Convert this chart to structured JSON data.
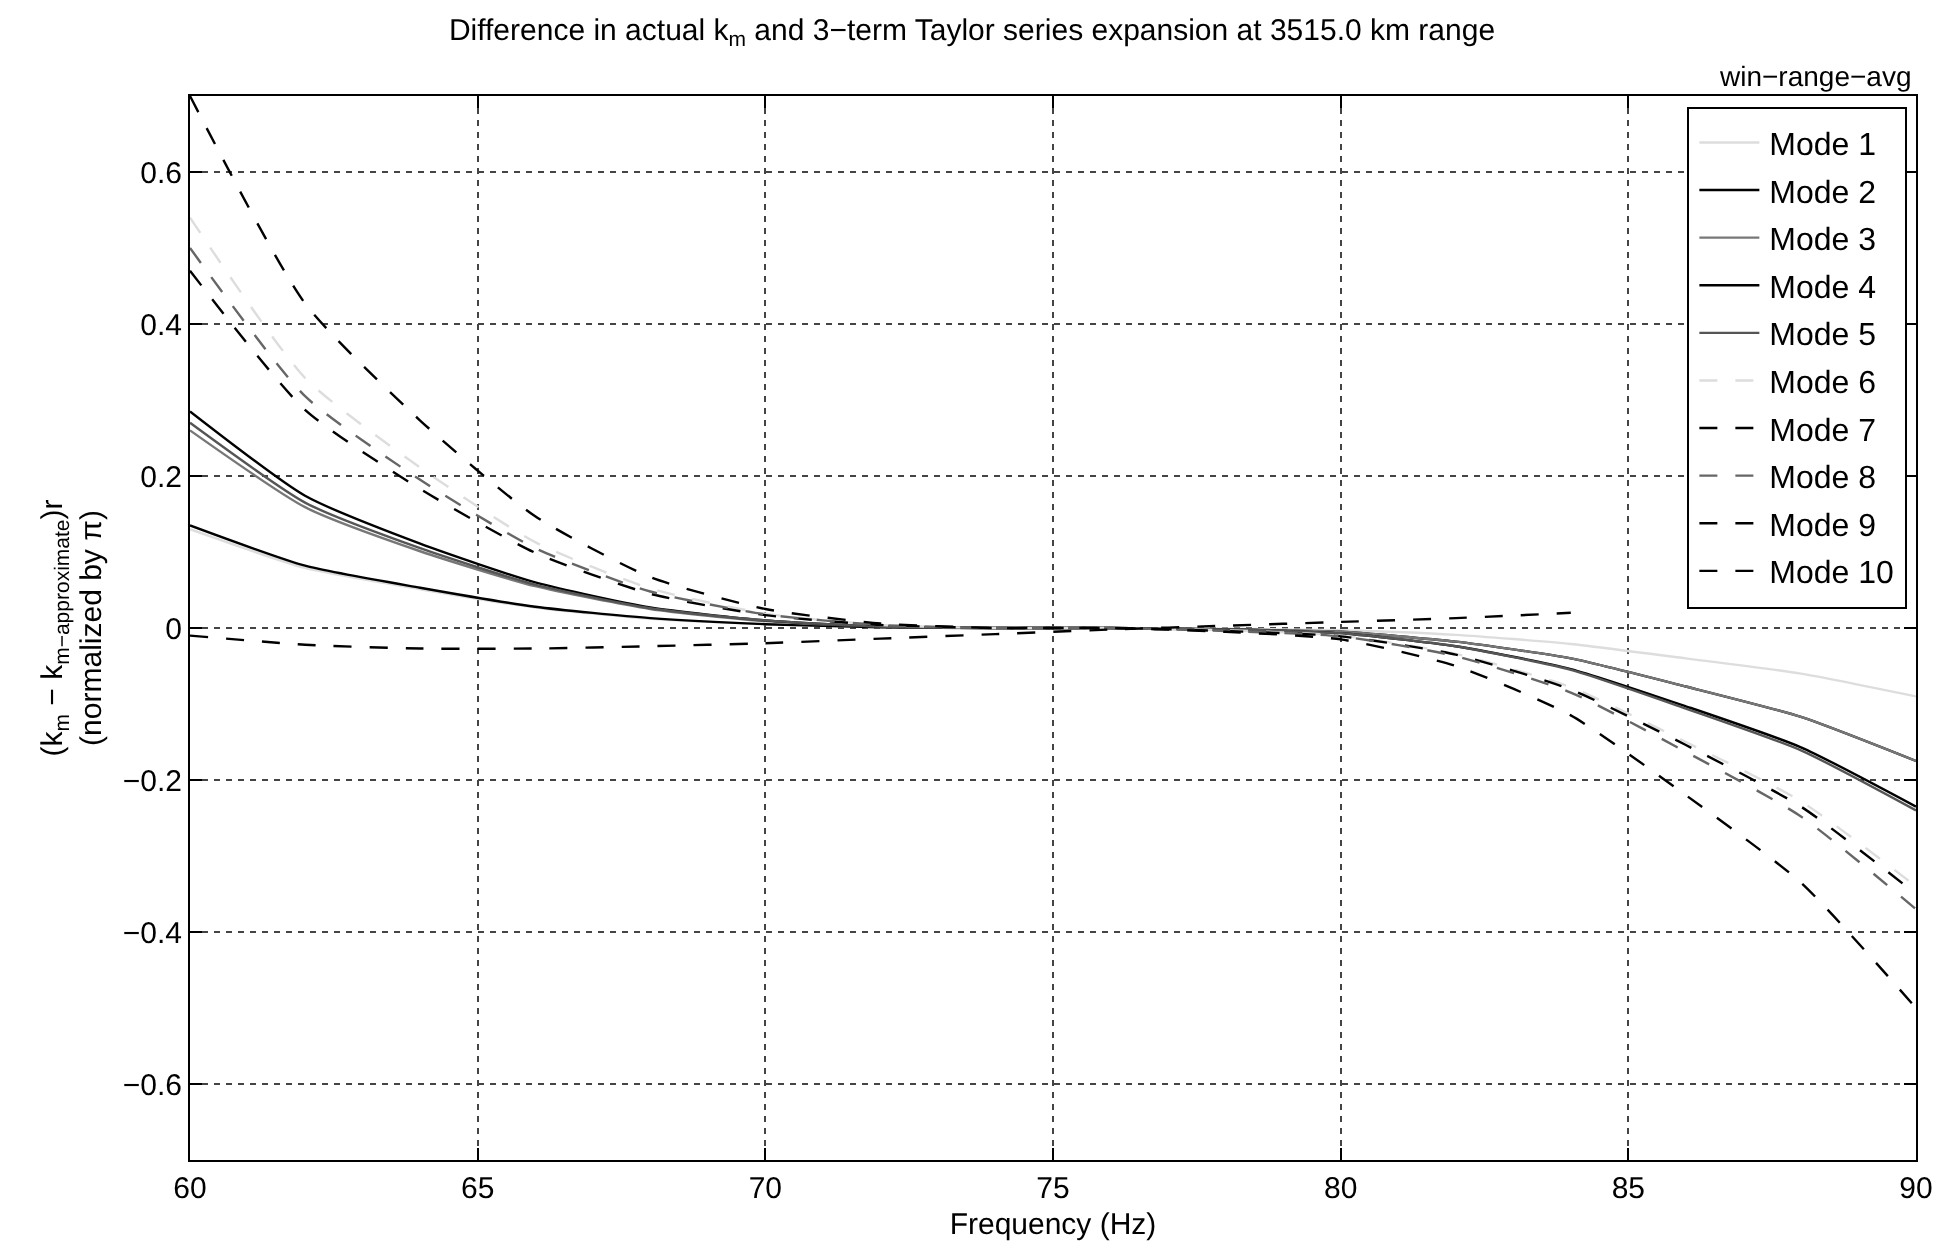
{
  "chart_data": {
    "type": "line",
    "title": "Difference in actual k$_{m}$ and 3−term Taylor series expansion at 3515.0 km range",
    "xlabel": "Frequency (Hz)",
    "ylabel": "(k$_{m}$ − k$_{m−approximate}$)r\n(normalized by π)",
    "annotations": [
      "win−range−avg"
    ],
    "x": [
      60,
      62,
      64,
      66,
      68,
      70,
      72,
      74,
      76,
      78,
      80,
      82,
      84,
      86,
      88,
      90
    ],
    "series": [
      {
        "name": "Mode 1",
        "color": "#dddddd",
        "line_style": "solid",
        "values": [
          0.13,
          0.079,
          0.051,
          0.027,
          0.012,
          0.005,
          0.001,
          0,
          0,
          -0.001,
          -0.003,
          -0.009,
          -0.021,
          -0.04,
          -0.06,
          -0.09
        ]
      },
      {
        "name": "Mode 2",
        "color": "#000000",
        "line_style": "solid",
        "values": [
          0.135,
          0.082,
          0.053,
          0.028,
          0.013,
          0.005,
          0.001,
          0,
          0,
          -0.002,
          -0.005,
          -0.018,
          -0.04,
          -0.077,
          -0.117,
          -0.175
        ]
      },
      {
        "name": "Mode 3",
        "color": "#777777",
        "line_style": "solid",
        "values": [
          0.26,
          0.159,
          0.101,
          0.055,
          0.025,
          0.009,
          0.002,
          0,
          0,
          -0.002,
          -0.005,
          -0.018,
          -0.04,
          -0.077,
          -0.117,
          -0.175
        ]
      },
      {
        "name": "Mode 4",
        "color": "#000000",
        "line_style": "solid",
        "values": [
          0.285,
          0.174,
          0.111,
          0.06,
          0.027,
          0.01,
          0.002,
          0,
          0,
          -0.002,
          -0.007,
          -0.024,
          -0.054,
          -0.103,
          -0.157,
          -0.235
        ]
      },
      {
        "name": "Mode 5",
        "color": "#555555",
        "line_style": "solid",
        "values": [
          0.27,
          0.165,
          0.105,
          0.057,
          0.026,
          0.01,
          0.002,
          0,
          0,
          -0.002,
          -0.007,
          -0.024,
          -0.055,
          -0.106,
          -0.161,
          -0.24
        ]
      },
      {
        "name": "Mode 6",
        "color": "#dddddd",
        "line_style": "dashed",
        "values": [
          0.54,
          0.329,
          0.211,
          0.113,
          0.052,
          0.019,
          0.004,
          0,
          0,
          -0.003,
          -0.01,
          -0.034,
          -0.078,
          -0.15,
          -0.228,
          -0.34
        ]
      },
      {
        "name": "Mode 7",
        "color": "#000000",
        "line_style": "dashed",
        "values": [
          0.47,
          0.287,
          0.183,
          0.099,
          0.045,
          0.017,
          0.004,
          0,
          0,
          -0.004,
          -0.011,
          -0.035,
          -0.081,
          -0.154,
          -0.235,
          -0.35
        ]
      },
      {
        "name": "Mode 8",
        "color": "#666666",
        "line_style": "dashed",
        "values": [
          0.5,
          0.305,
          0.195,
          0.105,
          0.048,
          0.018,
          0.004,
          0,
          0,
          -0.004,
          -0.011,
          -0.037,
          -0.085,
          -0.163,
          -0.248,
          -0.37
        ]
      },
      {
        "name": "Mode 9",
        "color": "#000000",
        "line_style": "dashed",
        "values": [
          0.7,
          0.427,
          0.273,
          0.147,
          0.067,
          0.025,
          0.006,
          0,
          0,
          -0.005,
          -0.015,
          -0.05,
          -0.115,
          -0.22,
          -0.335,
          -0.5
        ]
      },
      {
        "name": "Mode 10",
        "color": "#000000",
        "line_style": "dashed",
        "values": [
          -0.01,
          -0.022,
          -0.027,
          -0.027,
          -0.024,
          -0.02,
          -0.014,
          -0.008,
          -0.002,
          0.003,
          0.008,
          0.013,
          0.02,
          null,
          null,
          null
        ]
      }
    ],
    "xlim": [
      60,
      90
    ],
    "xticks": [
      60,
      65,
      70,
      75,
      80,
      85,
      90
    ],
    "ylim": [
      -0.7,
      0.7
    ],
    "yticks": [
      {
        "value": -0.6,
        "label": "−0.6"
      },
      {
        "value": -0.4,
        "label": "−0.4"
      },
      {
        "value": -0.2,
        "label": "−0.2"
      },
      0,
      0.2,
      0.4,
      0.6
    ],
    "grid": true,
    "legend": "top right",
    "marker": "none"
  }
}
